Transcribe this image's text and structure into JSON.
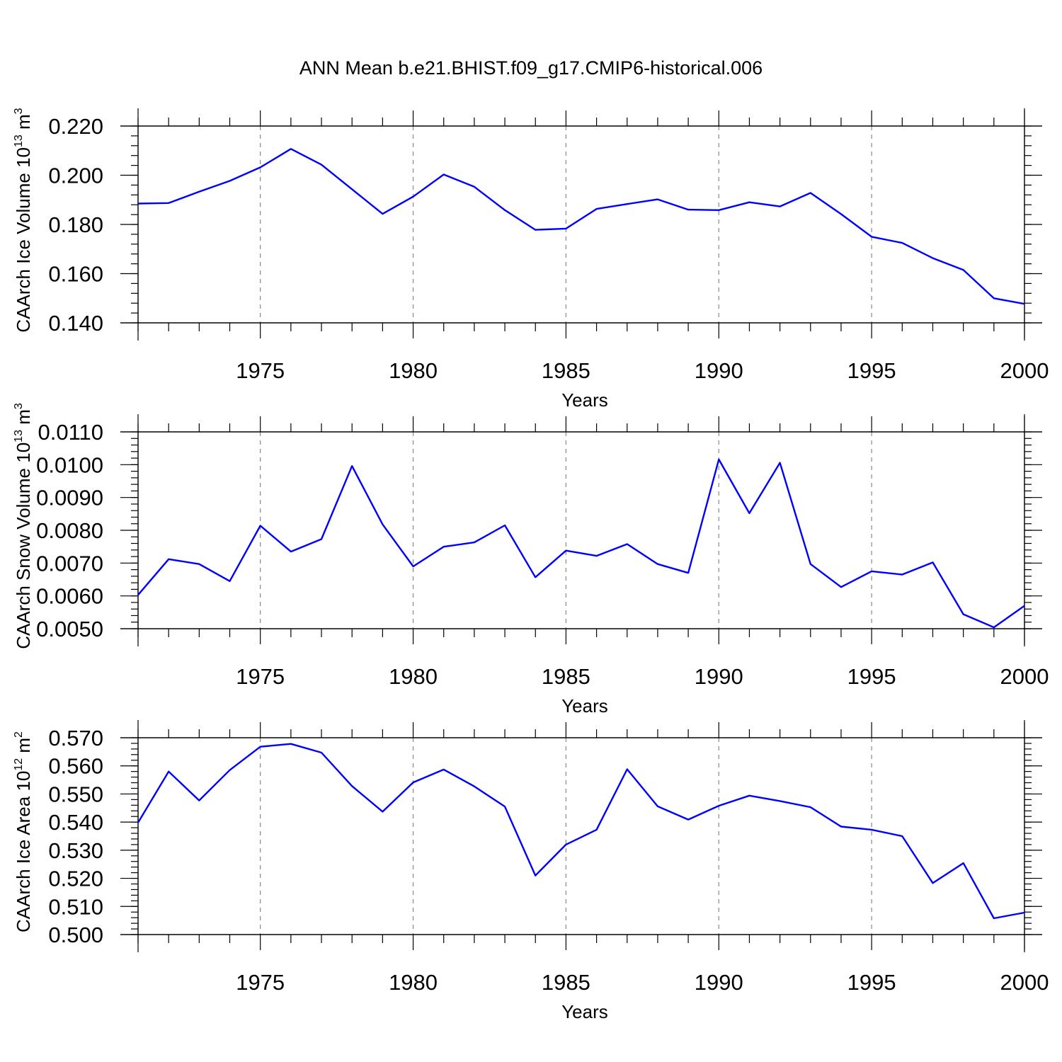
{
  "figure": {
    "title": "ANN Mean b.e21.BHIST.f09_g17.CMIP6-historical.006"
  },
  "chart_data": [
    {
      "type": "line",
      "xlabel": "Years",
      "ylabel_parts": {
        "base": "CAArch Ice Volume 10",
        "exp1": "13",
        "mid": " m",
        "exp2": "3"
      },
      "xlim": [
        1971,
        2000
      ],
      "ylim": [
        0.14,
        0.22
      ],
      "x_ticks": [
        1975,
        1980,
        1985,
        1990,
        1995,
        2000
      ],
      "x_tick_labels": [
        "1975",
        "1980",
        "1985",
        "1990",
        "1995",
        "2000"
      ],
      "y_ticks": [
        0.14,
        0.16,
        0.18,
        0.2,
        0.22
      ],
      "y_tick_labels": [
        "0.140",
        "0.160",
        "0.180",
        "0.200",
        "0.220"
      ],
      "y_minor_step": 0.004,
      "grid": "x-major dashed",
      "line_color": "#0000ff",
      "x": [
        1971,
        1972,
        1973,
        1974,
        1975,
        1976,
        1977,
        1978,
        1979,
        1980,
        1981,
        1982,
        1983,
        1984,
        1985,
        1986,
        1987,
        1988,
        1989,
        1990,
        1991,
        1992,
        1993,
        1994,
        1995,
        1996,
        1997,
        1998,
        1999,
        2000
      ],
      "values": [
        0.1885,
        0.1887,
        0.1933,
        0.1977,
        0.2032,
        0.2107,
        0.2043,
        0.1943,
        0.1843,
        0.1913,
        0.2003,
        0.1953,
        0.1858,
        0.1778,
        0.1783,
        0.1863,
        0.1883,
        0.1902,
        0.186,
        0.1858,
        0.189,
        0.1873,
        0.1928,
        0.1842,
        0.175,
        0.1725,
        0.1663,
        0.1615,
        0.15,
        0.1477
      ]
    },
    {
      "type": "line",
      "xlabel": "Years",
      "ylabel_parts": {
        "base": "CAArch Snow Volume 10",
        "exp1": "13",
        "mid": " m",
        "exp2": "3"
      },
      "xlim": [
        1971,
        2000
      ],
      "ylim": [
        0.005,
        0.011
      ],
      "x_ticks": [
        1975,
        1980,
        1985,
        1990,
        1995,
        2000
      ],
      "x_tick_labels": [
        "1975",
        "1980",
        "1985",
        "1990",
        "1995",
        "2000"
      ],
      "y_ticks": [
        0.005,
        0.006,
        0.007,
        0.008,
        0.009,
        0.01,
        0.011
      ],
      "y_tick_labels": [
        "0.0050",
        "0.0060",
        "0.0070",
        "0.0080",
        "0.0090",
        "0.0100",
        "0.0110"
      ],
      "y_minor_step": 0.0002,
      "grid": "x-major dashed",
      "line_color": "#0000ff",
      "x": [
        1971,
        1972,
        1973,
        1974,
        1975,
        1976,
        1977,
        1978,
        1979,
        1980,
        1981,
        1982,
        1983,
        1984,
        1985,
        1986,
        1987,
        1988,
        1989,
        1990,
        1991,
        1992,
        1993,
        1994,
        1995,
        1996,
        1997,
        1998,
        1999,
        2000
      ],
      "values": [
        0.00603,
        0.00712,
        0.00697,
        0.00645,
        0.00814,
        0.00735,
        0.00773,
        0.00996,
        0.00818,
        0.0069,
        0.0075,
        0.00763,
        0.00815,
        0.00657,
        0.00738,
        0.00722,
        0.00758,
        0.00697,
        0.0067,
        0.01016,
        0.00852,
        0.01006,
        0.00697,
        0.00627,
        0.00675,
        0.00665,
        0.00702,
        0.00544,
        0.00504,
        0.0057
      ]
    },
    {
      "type": "line",
      "xlabel": "Years",
      "ylabel_parts": {
        "base": "CAArch Ice Area 10",
        "exp1": "12",
        "mid": " m",
        "exp2": "2"
      },
      "xlim": [
        1971,
        2000
      ],
      "ylim": [
        0.5,
        0.57
      ],
      "x_ticks": [
        1975,
        1980,
        1985,
        1990,
        1995,
        2000
      ],
      "x_tick_labels": [
        "1975",
        "1980",
        "1985",
        "1990",
        "1995",
        "2000"
      ],
      "y_ticks": [
        0.5,
        0.51,
        0.52,
        0.53,
        0.54,
        0.55,
        0.56,
        0.57
      ],
      "y_tick_labels": [
        "0.500",
        "0.510",
        "0.520",
        "0.530",
        "0.540",
        "0.550",
        "0.560",
        "0.570"
      ],
      "y_minor_step": 0.002,
      "grid": "x-major dashed",
      "line_color": "#0000ff",
      "x": [
        1971,
        1972,
        1973,
        1974,
        1975,
        1976,
        1977,
        1978,
        1979,
        1980,
        1981,
        1982,
        1983,
        1984,
        1985,
        1986,
        1987,
        1988,
        1989,
        1990,
        1991,
        1992,
        1993,
        1994,
        1995,
        1996,
        1997,
        1998,
        1999,
        2000
      ],
      "values": [
        0.5398,
        0.558,
        0.5477,
        0.5585,
        0.5668,
        0.5678,
        0.5647,
        0.5528,
        0.5437,
        0.5541,
        0.5587,
        0.5527,
        0.5455,
        0.521,
        0.532,
        0.5373,
        0.5588,
        0.5456,
        0.5409,
        0.5458,
        0.5494,
        0.5475,
        0.5453,
        0.5384,
        0.5373,
        0.535,
        0.5183,
        0.5254,
        0.5058,
        0.5078
      ]
    }
  ]
}
